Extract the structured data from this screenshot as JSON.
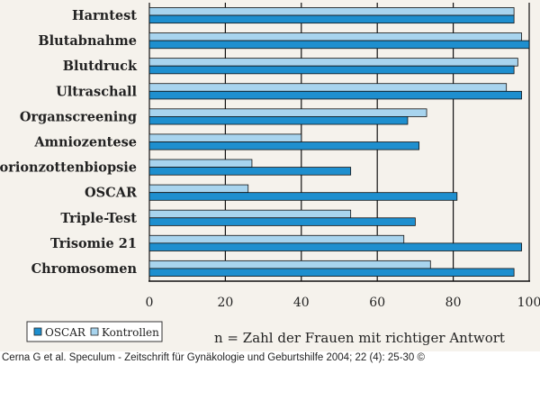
{
  "chart_data": {
    "type": "bar",
    "orientation": "horizontal",
    "categories": [
      "Harntest",
      "Blutabnahme",
      "Blutdruck",
      "Ultraschall",
      "Organscreening",
      "Amniozentese",
      "Chorionzottenbiopsie",
      "OSCAR",
      "Triple-Test",
      "Trisomie 21",
      "Chromosomen"
    ],
    "series": [
      {
        "name": "Kontrollen",
        "color": "#a8d4ee",
        "values": [
          96,
          98,
          97,
          94,
          73,
          40,
          27,
          26,
          53,
          67,
          74
        ]
      },
      {
        "name": "OSCAR",
        "color": "#1e8fcf",
        "values": [
          96,
          100,
          96,
          98,
          68,
          71,
          53,
          81,
          70,
          98,
          96
        ]
      }
    ],
    "xlim": [
      0,
      100
    ],
    "xticks": [
      0,
      20,
      40,
      60,
      80,
      100
    ],
    "grid": true,
    "legend": {
      "placement": "bottom-left",
      "entries": [
        "OSCAR",
        "Kontrollen"
      ]
    },
    "annotation": "n = Zahl der Frauen mit richtiger Antwort"
  },
  "caption": "Cerna G et al. Speculum - Zeitschrift für Gynäkologie und Geburtshilfe 2004; 22 (4): 25-30 ©"
}
